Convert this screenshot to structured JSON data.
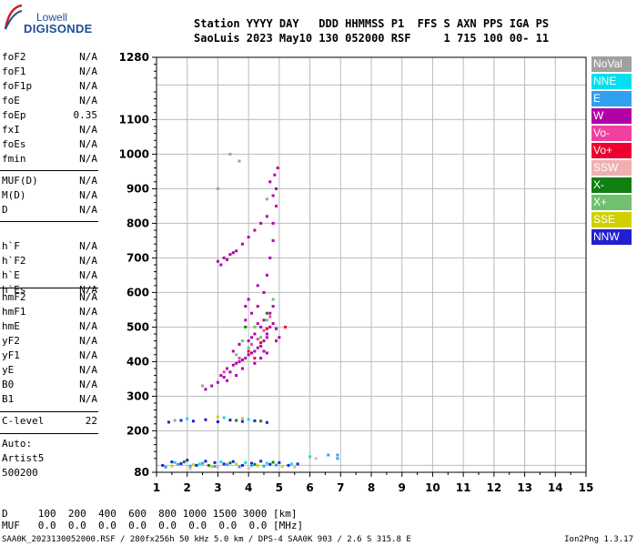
{
  "logo": {
    "line1": "Lowell",
    "line2": "DIGISONDE"
  },
  "header": {
    "line1": "Station YYYY DAY   DDD HHMMSS P1  FFS S AXN PPS IGA PS",
    "line2": "SaoLuis 2023 May10 130 052000 RSF     1 715 100 00- 11"
  },
  "params_group1": [
    {
      "name": "foF2",
      "value": "N/A"
    },
    {
      "name": "foF1",
      "value": "N/A"
    },
    {
      "name": "foF1p",
      "value": "N/A"
    },
    {
      "name": "foE",
      "value": "N/A"
    },
    {
      "name": "foEp",
      "value": "0.35"
    },
    {
      "name": "fxI",
      "value": "N/A"
    },
    {
      "name": "foEs",
      "value": "N/A"
    },
    {
      "name": "fmin",
      "value": "N/A"
    }
  ],
  "params_group2": [
    {
      "name": "MUF(D)",
      "value": "N/A"
    },
    {
      "name": "M(D)",
      "value": "N/A"
    },
    {
      "name": "D",
      "value": "N/A"
    }
  ],
  "params_group3": [
    {
      "name": "h`F",
      "value": "N/A"
    },
    {
      "name": "h`F2",
      "value": "N/A"
    },
    {
      "name": "h`E",
      "value": "N/A"
    },
    {
      "name": "h`Es",
      "value": "N/A"
    }
  ],
  "params_group4": [
    {
      "name": "hmF2",
      "value": "N/A"
    },
    {
      "name": "hmF1",
      "value": "N/A"
    },
    {
      "name": "hmE",
      "value": "N/A"
    },
    {
      "name": "yF2",
      "value": "N/A"
    },
    {
      "name": "yF1",
      "value": "N/A"
    },
    {
      "name": "yE",
      "value": "N/A"
    },
    {
      "name": "B0",
      "value": "N/A"
    },
    {
      "name": "B1",
      "value": "N/A"
    }
  ],
  "clevel": {
    "name": "C-level",
    "value": "22"
  },
  "auto": [
    "Auto:",
    "Artist5",
    "500200"
  ],
  "legend": [
    {
      "label": "NoVal",
      "color": "#a0a0a0"
    },
    {
      "label": "NNE",
      "color": "#00e0f0"
    },
    {
      "label": "E",
      "color": "#30a0f0"
    },
    {
      "label": "W",
      "color": "#b000a8"
    },
    {
      "label": "Vo-",
      "color": "#f040a0"
    },
    {
      "label": "Vo+",
      "color": "#f00030"
    },
    {
      "label": "SSW",
      "color": "#f0b0b0"
    },
    {
      "label": "X-",
      "color": "#108010"
    },
    {
      "label": "X+",
      "color": "#70c070"
    },
    {
      "label": "SSE",
      "color": "#d0d000"
    },
    {
      "label": "NNW",
      "color": "#2020d0"
    }
  ],
  "bottom": {
    "d_row": "D     100  200  400  600  800 1000 1500 3000 [km]",
    "muf_row": "MUF   0.0  0.0  0.0  0.0  0.0  0.0  0.0  0.0 [MHz]"
  },
  "footer": {
    "left": "SAA0K_2023130052000.RSF / 280fx256h 50 kHz 5.0 km / DPS-4 SAA0K 903 / 2.6 S 315.8 E",
    "right": "Ion2Png 1.3.17"
  },
  "chart_data": {
    "type": "scatter",
    "xlabel": "",
    "ylabel": "",
    "xlim": [
      1,
      15
    ],
    "ylim": [
      80,
      1280
    ],
    "x_ticks": [
      1,
      2,
      3,
      4,
      5,
      6,
      7,
      8,
      9,
      10,
      11,
      12,
      13,
      14,
      15
    ],
    "y_tick_labels": [
      80,
      200,
      300,
      400,
      500,
      600,
      700,
      800,
      900,
      1000,
      1100,
      1280
    ],
    "grid": true,
    "series": [
      {
        "name": "W",
        "color": "#b000a8",
        "points": [
          [
            3.0,
            340
          ],
          [
            3.2,
            355
          ],
          [
            3.4,
            370
          ],
          [
            3.5,
            390
          ],
          [
            3.7,
            400
          ],
          [
            3.9,
            410
          ],
          [
            4.0,
            420
          ],
          [
            4.2,
            430
          ],
          [
            4.4,
            445
          ],
          [
            4.5,
            460
          ],
          [
            4.6,
            480
          ],
          [
            4.7,
            500
          ],
          [
            4.8,
            510
          ],
          [
            3.3,
            380
          ],
          [
            3.6,
            395
          ],
          [
            3.8,
            405
          ],
          [
            4.1,
            425
          ],
          [
            4.3,
            440
          ],
          [
            4.6,
            470
          ],
          [
            4.9,
            495
          ],
          [
            3.1,
            360
          ],
          [
            4.0,
            460
          ],
          [
            4.2,
            480
          ],
          [
            4.4,
            500
          ],
          [
            4.5,
            520
          ],
          [
            4.7,
            540
          ],
          [
            4.8,
            560
          ],
          [
            4.5,
            600
          ],
          [
            4.3,
            620
          ],
          [
            4.0,
            580
          ],
          [
            3.9,
            560
          ],
          [
            4.6,
            650
          ],
          [
            4.7,
            700
          ],
          [
            4.8,
            750
          ],
          [
            4.8,
            800
          ],
          [
            4.9,
            850
          ],
          [
            4.9,
            900
          ],
          [
            4.95,
            960
          ],
          [
            3.0,
            690
          ],
          [
            3.2,
            700
          ],
          [
            3.4,
            710
          ],
          [
            3.6,
            720
          ],
          [
            3.8,
            740
          ],
          [
            4.0,
            760
          ],
          [
            4.2,
            780
          ],
          [
            4.4,
            800
          ],
          [
            3.1,
            680
          ],
          [
            3.3,
            695
          ],
          [
            3.5,
            715
          ],
          [
            4.6,
            820
          ],
          [
            4.8,
            880
          ],
          [
            4.7,
            920
          ],
          [
            4.85,
            940
          ],
          [
            2.6,
            320
          ],
          [
            2.8,
            330
          ],
          [
            3.5,
            430
          ],
          [
            3.7,
            450
          ],
          [
            4.1,
            470
          ],
          [
            4.3,
            510
          ],
          [
            4.5,
            430
          ],
          [
            4.9,
            460
          ],
          [
            5.0,
            470
          ],
          [
            4.4,
            410
          ],
          [
            3.8,
            380
          ],
          [
            3.6,
            360
          ],
          [
            4.2,
            395
          ],
          [
            4.6,
            425
          ],
          [
            3.3,
            345
          ],
          [
            3.9,
            520
          ],
          [
            4.1,
            540
          ],
          [
            4.3,
            560
          ]
        ]
      },
      {
        "name": "X+",
        "color": "#70c070",
        "points": [
          [
            3.6,
            420
          ],
          [
            4.0,
            440
          ],
          [
            4.4,
            470
          ],
          [
            4.6,
            520
          ],
          [
            4.8,
            580
          ],
          [
            4.2,
            500
          ],
          [
            3.8,
            460
          ]
        ]
      },
      {
        "name": "Vo-",
        "color": "#f040a0",
        "points": [
          [
            3.2,
            370
          ],
          [
            3.7,
            410
          ],
          [
            4.1,
            450
          ],
          [
            4.5,
            490
          ],
          [
            4.7,
            530
          ],
          [
            4.3,
            465
          ]
        ]
      },
      {
        "name": "Vo+",
        "color": "#f00030",
        "points": [
          [
            4.0,
            430
          ],
          [
            4.4,
            455
          ],
          [
            4.6,
            495
          ],
          [
            5.2,
            500
          ],
          [
            4.2,
            410
          ]
        ]
      },
      {
        "name": "NNW",
        "color": "#2020d0",
        "points": [
          [
            1.2,
            100
          ],
          [
            1.5,
            110
          ],
          [
            1.8,
            105
          ],
          [
            2.0,
            115
          ],
          [
            2.3,
            100
          ],
          [
            2.6,
            112
          ],
          [
            2.9,
            108
          ],
          [
            3.2,
            104
          ],
          [
            3.5,
            111
          ],
          [
            3.8,
            100
          ],
          [
            4.1,
            106
          ],
          [
            4.4,
            112
          ],
          [
            4.7,
            103
          ],
          [
            5.0,
            108
          ],
          [
            5.3,
            100
          ],
          [
            5.6,
            104
          ],
          [
            1.4,
            225
          ],
          [
            1.8,
            230
          ],
          [
            2.2,
            228
          ],
          [
            2.6,
            232
          ],
          [
            3.0,
            226
          ],
          [
            3.4,
            231
          ],
          [
            3.8,
            227
          ],
          [
            4.2,
            229
          ],
          [
            4.6,
            224
          ]
        ]
      },
      {
        "name": "E",
        "color": "#30a0f0",
        "points": [
          [
            1.3,
            95
          ],
          [
            1.7,
            103
          ],
          [
            2.1,
            98
          ],
          [
            2.5,
            106
          ],
          [
            2.9,
            97
          ],
          [
            3.3,
            102
          ],
          [
            3.7,
            96
          ],
          [
            4.1,
            100
          ],
          [
            4.5,
            98
          ],
          [
            4.9,
            101
          ],
          [
            6.6,
            130
          ],
          [
            6.9,
            130
          ],
          [
            6.9,
            120
          ]
        ]
      },
      {
        "name": "NNE",
        "color": "#00e0f0",
        "points": [
          [
            1.6,
            108
          ],
          [
            2.4,
            104
          ],
          [
            3.1,
            110
          ],
          [
            3.9,
            108
          ],
          [
            4.6,
            106
          ],
          [
            5.4,
            104
          ],
          [
            6.0,
            125
          ],
          [
            2.0,
            235
          ],
          [
            3.2,
            238
          ],
          [
            4.0,
            233
          ]
        ]
      },
      {
        "name": "SSE",
        "color": "#d0d000",
        "points": [
          [
            1.5,
            98
          ],
          [
            2.2,
            102
          ],
          [
            2.8,
            96
          ],
          [
            3.6,
            104
          ],
          [
            4.3,
            99
          ],
          [
            5.1,
            97
          ],
          [
            3.0,
            240
          ],
          [
            3.8,
            236
          ]
        ]
      },
      {
        "name": "X-",
        "color": "#108010",
        "points": [
          [
            1.9,
            110
          ],
          [
            2.7,
            100
          ],
          [
            3.4,
            107
          ],
          [
            4.2,
            103
          ],
          [
            4.8,
            109
          ],
          [
            3.6,
            230
          ],
          [
            4.4,
            228
          ],
          [
            4.6,
            540
          ],
          [
            3.9,
            500
          ]
        ]
      },
      {
        "name": "SSW",
        "color": "#f0b0b0",
        "points": [
          [
            2.1,
            90
          ],
          [
            3.0,
            95
          ],
          [
            4.0,
            92
          ],
          [
            5.5,
            95
          ],
          [
            6.2,
            120
          ]
        ]
      },
      {
        "name": "NoVal",
        "color": "#a0a0a0",
        "points": [
          [
            3.4,
            1000
          ],
          [
            3.7,
            980
          ],
          [
            2.5,
            330
          ],
          [
            3.0,
            900
          ],
          [
            4.6,
            870
          ],
          [
            1.6,
            230
          ]
        ]
      }
    ]
  }
}
